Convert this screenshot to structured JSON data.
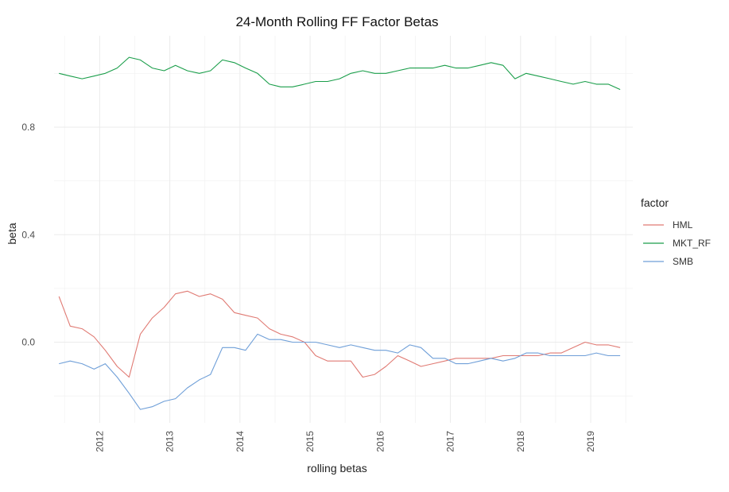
{
  "chart_data": {
    "type": "line",
    "title": "24-Month Rolling FF Factor Betas",
    "xlabel": "rolling betas",
    "ylabel": "beta",
    "xlim": [
      2011.35,
      2019.6
    ],
    "ylim": [
      -0.3,
      1.14
    ],
    "x_ticks": [
      2012,
      2013,
      2014,
      2015,
      2016,
      2017,
      2018,
      2019
    ],
    "x_tick_labels": [
      "2012",
      "2013",
      "2014",
      "2015",
      "2016",
      "2017",
      "2018",
      "2019"
    ],
    "y_ticks": [
      0.0,
      0.4,
      0.8
    ],
    "y_tick_labels": [
      "0.0",
      "0.4",
      "0.8"
    ],
    "grid": true,
    "legend": {
      "title": "factor",
      "position": "right"
    },
    "series": [
      {
        "name": "HML",
        "color": "#e07a73",
        "x": [
          2011.42,
          2011.58,
          2011.75,
          2011.92,
          2012.08,
          2012.25,
          2012.42,
          2012.58,
          2012.75,
          2012.92,
          2013.08,
          2013.25,
          2013.42,
          2013.58,
          2013.75,
          2013.92,
          2014.08,
          2014.25,
          2014.42,
          2014.58,
          2014.75,
          2014.92,
          2015.08,
          2015.25,
          2015.42,
          2015.58,
          2015.75,
          2015.92,
          2016.08,
          2016.25,
          2016.42,
          2016.58,
          2016.75,
          2016.92,
          2017.08,
          2017.25,
          2017.42,
          2017.58,
          2017.75,
          2017.92,
          2018.08,
          2018.25,
          2018.42,
          2018.58,
          2018.75,
          2018.92,
          2019.08,
          2019.25,
          2019.42
        ],
        "values": [
          0.17,
          0.06,
          0.05,
          0.02,
          -0.03,
          -0.09,
          -0.13,
          0.03,
          0.09,
          0.13,
          0.18,
          0.19,
          0.17,
          0.18,
          0.16,
          0.11,
          0.1,
          0.09,
          0.05,
          0.03,
          0.02,
          0.0,
          -0.05,
          -0.07,
          -0.07,
          -0.07,
          -0.13,
          -0.12,
          -0.09,
          -0.05,
          -0.07,
          -0.09,
          -0.08,
          -0.07,
          -0.06,
          -0.06,
          -0.06,
          -0.06,
          -0.05,
          -0.05,
          -0.05,
          -0.05,
          -0.04,
          -0.04,
          -0.02,
          0.0,
          -0.01,
          -0.01,
          -0.02
        ]
      },
      {
        "name": "MKT_RF",
        "color": "#1a9e4a",
        "x": [
          2011.42,
          2011.58,
          2011.75,
          2011.92,
          2012.08,
          2012.25,
          2012.42,
          2012.58,
          2012.75,
          2012.92,
          2013.08,
          2013.25,
          2013.42,
          2013.58,
          2013.75,
          2013.92,
          2014.08,
          2014.25,
          2014.42,
          2014.58,
          2014.75,
          2014.92,
          2015.08,
          2015.25,
          2015.42,
          2015.58,
          2015.75,
          2015.92,
          2016.08,
          2016.25,
          2016.42,
          2016.58,
          2016.75,
          2016.92,
          2017.08,
          2017.25,
          2017.42,
          2017.58,
          2017.75,
          2017.92,
          2018.08,
          2018.25,
          2018.42,
          2018.58,
          2018.75,
          2018.92,
          2019.08,
          2019.25,
          2019.42
        ],
        "values": [
          1.0,
          0.99,
          0.98,
          0.99,
          1.0,
          1.02,
          1.06,
          1.05,
          1.02,
          1.01,
          1.03,
          1.01,
          1.0,
          1.01,
          1.05,
          1.04,
          1.02,
          1.0,
          0.96,
          0.95,
          0.95,
          0.96,
          0.97,
          0.97,
          0.98,
          1.0,
          1.01,
          1.0,
          1.0,
          1.01,
          1.02,
          1.02,
          1.02,
          1.03,
          1.02,
          1.02,
          1.03,
          1.04,
          1.03,
          0.98,
          1.0,
          0.99,
          0.98,
          0.97,
          0.96,
          0.97,
          0.96,
          0.96,
          0.94
        ]
      },
      {
        "name": "SMB",
        "color": "#6f9fd8",
        "x": [
          2011.42,
          2011.58,
          2011.75,
          2011.92,
          2012.08,
          2012.25,
          2012.42,
          2012.58,
          2012.75,
          2012.92,
          2013.08,
          2013.25,
          2013.42,
          2013.58,
          2013.75,
          2013.92,
          2014.08,
          2014.25,
          2014.42,
          2014.58,
          2014.75,
          2014.92,
          2015.08,
          2015.25,
          2015.42,
          2015.58,
          2015.75,
          2015.92,
          2016.08,
          2016.25,
          2016.42,
          2016.58,
          2016.75,
          2016.92,
          2017.08,
          2017.25,
          2017.42,
          2017.58,
          2017.75,
          2017.92,
          2018.08,
          2018.25,
          2018.42,
          2018.58,
          2018.75,
          2018.92,
          2019.08,
          2019.25,
          2019.42
        ],
        "values": [
          -0.08,
          -0.07,
          -0.08,
          -0.1,
          -0.08,
          -0.13,
          -0.19,
          -0.25,
          -0.24,
          -0.22,
          -0.21,
          -0.17,
          -0.14,
          -0.12,
          -0.02,
          -0.02,
          -0.03,
          0.03,
          0.01,
          0.01,
          0.0,
          0.0,
          0.0,
          -0.01,
          -0.02,
          -0.01,
          -0.02,
          -0.03,
          -0.03,
          -0.04,
          -0.01,
          -0.02,
          -0.06,
          -0.06,
          -0.08,
          -0.08,
          -0.07,
          -0.06,
          -0.07,
          -0.06,
          -0.04,
          -0.04,
          -0.05,
          -0.05,
          -0.05,
          -0.05,
          -0.04,
          -0.05,
          -0.05
        ]
      }
    ]
  }
}
